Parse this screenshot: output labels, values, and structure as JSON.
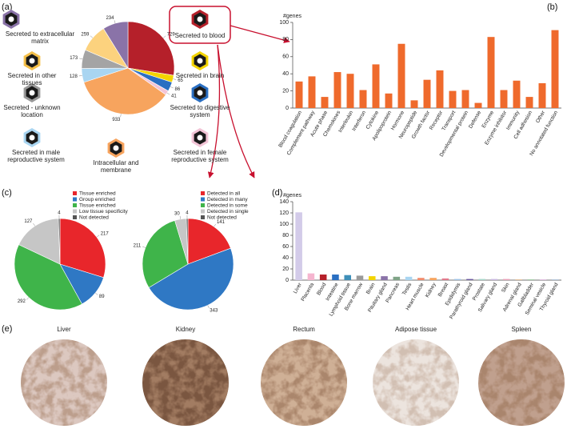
{
  "panel_labels": [
    "(a)",
    "(b)",
    "(c)",
    "(d)",
    "(e)"
  ],
  "icon_labels": [
    "Secreted to extracellular matrix",
    "Secreted in other tissues",
    "Secreted - unknown location",
    "Secreted to blood",
    "Secreted in brain",
    "Secreted to digestive system",
    "Secreted in male reproductive system",
    "Intracellular and membrane",
    "Secreted in female reproductive system"
  ],
  "chart_data": [
    {
      "type": "pie",
      "values": [
        729,
        65,
        86,
        41,
        933,
        128,
        173,
        259,
        234
      ],
      "colors": [
        "#b5202a",
        "#f3d400",
        "#2a6fc2",
        "#f2c4d6",
        "#f7a45e",
        "#a9d5f1",
        "#a4a4a4",
        "#fcd27e",
        "#8a73a8"
      ]
    },
    {
      "type": "bar",
      "y_label": "#genes",
      "categories": [
        "Blood coagulation",
        "Complement pathway",
        "Acute phase",
        "Chemokines",
        "Interleukin",
        "Interferon",
        "Cytokine",
        "Apolipoprotein",
        "Hormone",
        "Neuropeptide",
        "Growth factor",
        "Receptor",
        "Transport",
        "Developmental protein",
        "Defense",
        "Enzyme",
        "Enzyme inhibitor",
        "Immunity",
        "Cell adhesion",
        "Other",
        "No annotated function"
      ],
      "values": [
        31,
        37,
        13,
        42,
        40,
        21,
        51,
        17,
        75,
        9,
        33,
        44,
        20,
        21,
        6,
        83,
        21,
        32,
        13,
        29,
        91
      ],
      "color": "#ef6a2c",
      "ylim": [
        0,
        100
      ],
      "yticks": [
        0,
        20,
        40,
        60,
        80,
        100
      ]
    },
    {
      "type": "pie",
      "categories": [
        "Tissue enriched",
        "Group enriched",
        "Tissue enriched",
        "Low tissue specificity",
        "Not detected"
      ],
      "values": [
        217,
        89,
        292,
        127,
        4
      ],
      "colors": [
        "#e8262b",
        "#2f78c4",
        "#3fb44a",
        "#c6c6c6",
        "#555555"
      ],
      "legend": "upper right"
    },
    {
      "type": "pie",
      "categories": [
        "Detected in all",
        "Detected in many",
        "Detected in some",
        "Detected in single",
        "Not detected"
      ],
      "values": [
        141,
        343,
        211,
        30,
        4
      ],
      "colors": [
        "#e8262b",
        "#2f78c4",
        "#3fb44a",
        "#c6c6c6",
        "#555555"
      ],
      "legend": "upper right"
    },
    {
      "type": "bar",
      "y_label": "#genes",
      "categories": [
        "Liver",
        "Placenta",
        "Blood",
        "Intestine",
        "Lymphoid tissue",
        "Bone marrow",
        "Brain",
        "Pituitary gland",
        "Pancreas",
        "Testis",
        "Heart muscle",
        "Kidney",
        "Breast",
        "Epididymis",
        "Parathyroid gland",
        "Prostate",
        "Salivary gland",
        "Skin",
        "Adrenal gland",
        "Gallbladder",
        "Seminal vesicle",
        "Thyroid gland"
      ],
      "values": [
        121,
        12,
        10,
        10,
        9,
        8,
        7,
        7,
        6,
        6,
        4,
        4,
        3,
        2,
        2,
        2,
        2,
        2,
        1,
        1,
        1,
        1
      ],
      "colors": [
        "#d3cbe9",
        "#f5b5cf",
        "#b5202a",
        "#2a6fc2",
        "#3f8fb8",
        "#9a9a9a",
        "#f3d400",
        "#8a73a8",
        "#7fa487",
        "#a9d5f1",
        "#f28b6b",
        "#f7a45e",
        "#e27a8c",
        "#9ec3e6",
        "#6b5aa0",
        "#a6d6c9",
        "#c9b7e0",
        "#e9a1b8",
        "#d8a56e",
        "#7bb57f",
        "#cfa0cf",
        "#8fa8c8"
      ],
      "ylim": [
        0,
        140
      ],
      "yticks": [
        0,
        20,
        40,
        60,
        80,
        100,
        120,
        140
      ]
    }
  ],
  "tissue_images": [
    "Liver",
    "Kidney",
    "Rectum",
    "Adipose tissue",
    "Spleen"
  ]
}
